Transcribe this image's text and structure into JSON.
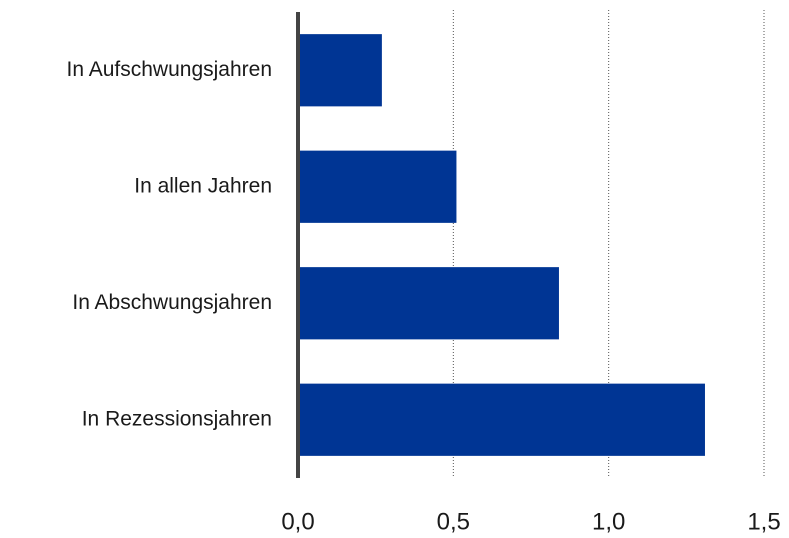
{
  "chart_data": {
    "type": "bar",
    "orientation": "horizontal",
    "categories": [
      "In Aufschwungsjahren",
      "In allen Jahren",
      "In Abschwungsjahren",
      "In Rezessionsjahren"
    ],
    "values": [
      0.27,
      0.51,
      0.84,
      1.31
    ],
    "color": "#003594",
    "xlim": [
      0,
      1.5
    ],
    "xticks": [
      {
        "value": 0,
        "label": "0,0"
      },
      {
        "value": 0.5,
        "label": "0,5"
      },
      {
        "value": 1,
        "label": "1,0"
      },
      {
        "value": 1.5,
        "label": "1,5"
      }
    ],
    "grid": true
  }
}
